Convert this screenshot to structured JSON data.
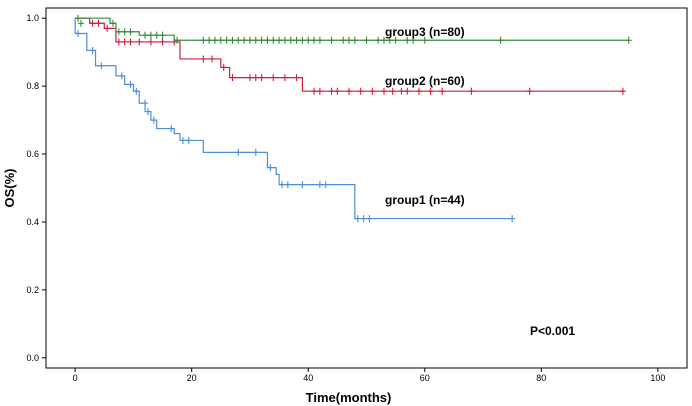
{
  "chart_data": {
    "type": "line",
    "subtype": "kaplan-meier",
    "xlabel": "Time(months)",
    "ylabel": "OS(%)",
    "xlim": [
      -5,
      105
    ],
    "ylim": [
      -0.03,
      1.03
    ],
    "xticks": [
      0,
      20,
      40,
      60,
      80,
      100
    ],
    "yticks": [
      0.0,
      0.2,
      0.4,
      0.6,
      0.8,
      1.0
    ],
    "xtick_labels": [
      "0",
      "20",
      "40",
      "60",
      "80",
      "100"
    ],
    "ytick_labels": [
      "0.0",
      "0.2",
      "0.4",
      "0.6",
      "0.8",
      "1.0"
    ],
    "annotation": "P<0.001",
    "series": [
      {
        "name": "group1 (n=44)",
        "color": "#4a8fd8",
        "steps": [
          [
            0,
            1.0
          ],
          [
            0,
            0.955
          ],
          [
            2,
            0.905
          ],
          [
            3.5,
            0.86
          ],
          [
            7,
            0.83
          ],
          [
            8.5,
            0.805
          ],
          [
            10,
            0.785
          ],
          [
            11,
            0.75
          ],
          [
            12,
            0.725
          ],
          [
            13,
            0.7
          ],
          [
            14,
            0.675
          ],
          [
            17,
            0.66
          ],
          [
            18,
            0.64
          ],
          [
            22,
            0.605
          ],
          [
            33,
            0.56
          ],
          [
            34.5,
            0.54
          ],
          [
            35,
            0.51
          ],
          [
            48,
            0.41
          ],
          [
            75,
            0.41
          ]
        ],
        "censors": [
          [
            0.5,
            0.955
          ],
          [
            3,
            0.905
          ],
          [
            4.5,
            0.86
          ],
          [
            8,
            0.83
          ],
          [
            9.5,
            0.805
          ],
          [
            10.5,
            0.785
          ],
          [
            12,
            0.75
          ],
          [
            12.5,
            0.725
          ],
          [
            13.5,
            0.7
          ],
          [
            16.5,
            0.675
          ],
          [
            18.5,
            0.64
          ],
          [
            19.5,
            0.64
          ],
          [
            28,
            0.605
          ],
          [
            31,
            0.605
          ],
          [
            33.5,
            0.56
          ],
          [
            35.5,
            0.51
          ],
          [
            36.5,
            0.51
          ],
          [
            39,
            0.51
          ],
          [
            42,
            0.51
          ],
          [
            43,
            0.51
          ],
          [
            48.5,
            0.41
          ],
          [
            49.5,
            0.41
          ],
          [
            50.5,
            0.41
          ],
          [
            75,
            0.41
          ]
        ]
      },
      {
        "name": "group2 (n=60)",
        "color": "#cc1f3f",
        "steps": [
          [
            0,
            1.0
          ],
          [
            2.5,
            0.985
          ],
          [
            5,
            0.97
          ],
          [
            7,
            0.93
          ],
          [
            18,
            0.88
          ],
          [
            25,
            0.855
          ],
          [
            26.5,
            0.825
          ],
          [
            39,
            0.785
          ],
          [
            94,
            0.785
          ]
        ],
        "censors": [
          [
            3,
            0.985
          ],
          [
            4,
            0.985
          ],
          [
            5.5,
            0.97
          ],
          [
            7.5,
            0.93
          ],
          [
            8.5,
            0.93
          ],
          [
            9.5,
            0.93
          ],
          [
            11,
            0.93
          ],
          [
            13,
            0.93
          ],
          [
            15,
            0.93
          ],
          [
            17,
            0.93
          ],
          [
            22,
            0.88
          ],
          [
            23.5,
            0.88
          ],
          [
            25.5,
            0.855
          ],
          [
            27,
            0.825
          ],
          [
            30,
            0.825
          ],
          [
            31,
            0.825
          ],
          [
            32,
            0.825
          ],
          [
            34,
            0.825
          ],
          [
            36,
            0.825
          ],
          [
            38,
            0.825
          ],
          [
            41,
            0.785
          ],
          [
            42,
            0.785
          ],
          [
            44,
            0.785
          ],
          [
            45,
            0.785
          ],
          [
            47,
            0.785
          ],
          [
            49,
            0.785
          ],
          [
            51,
            0.785
          ],
          [
            53,
            0.785
          ],
          [
            54.5,
            0.785
          ],
          [
            56,
            0.785
          ],
          [
            57,
            0.785
          ],
          [
            59,
            0.785
          ],
          [
            61,
            0.785
          ],
          [
            63,
            0.785
          ],
          [
            68,
            0.785
          ],
          [
            78,
            0.785
          ],
          [
            94,
            0.785
          ]
        ]
      },
      {
        "name": "group3 (n=80)",
        "color": "#3a8a3a",
        "steps": [
          [
            0,
            1.0
          ],
          [
            6,
            0.985
          ],
          [
            7,
            0.96
          ],
          [
            11,
            0.95
          ],
          [
            17,
            0.935
          ],
          [
            95,
            0.935
          ]
        ],
        "censors": [
          [
            0.5,
            1.0
          ],
          [
            1,
            0.985
          ],
          [
            6.5,
            0.985
          ],
          [
            7.5,
            0.96
          ],
          [
            8.5,
            0.96
          ],
          [
            9.5,
            0.96
          ],
          [
            12,
            0.95
          ],
          [
            13,
            0.95
          ],
          [
            14,
            0.95
          ],
          [
            15,
            0.95
          ],
          [
            17.5,
            0.935
          ],
          [
            22,
            0.935
          ],
          [
            23,
            0.935
          ],
          [
            24,
            0.935
          ],
          [
            25,
            0.935
          ],
          [
            26,
            0.935
          ],
          [
            27,
            0.935
          ],
          [
            28,
            0.935
          ],
          [
            29,
            0.935
          ],
          [
            30,
            0.935
          ],
          [
            31,
            0.935
          ],
          [
            32,
            0.935
          ],
          [
            33,
            0.935
          ],
          [
            34,
            0.935
          ],
          [
            35,
            0.935
          ],
          [
            36,
            0.935
          ],
          [
            37,
            0.935
          ],
          [
            38,
            0.935
          ],
          [
            39,
            0.935
          ],
          [
            40,
            0.935
          ],
          [
            41,
            0.935
          ],
          [
            42,
            0.935
          ],
          [
            44,
            0.935
          ],
          [
            46,
            0.935
          ],
          [
            47,
            0.935
          ],
          [
            48,
            0.935
          ],
          [
            50,
            0.935
          ],
          [
            52,
            0.935
          ],
          [
            53,
            0.935
          ],
          [
            54,
            0.935
          ],
          [
            55,
            0.935
          ],
          [
            57,
            0.935
          ],
          [
            58,
            0.935
          ],
          [
            60,
            0.935
          ],
          [
            73,
            0.935
          ],
          [
            95,
            0.935
          ]
        ]
      }
    ]
  }
}
